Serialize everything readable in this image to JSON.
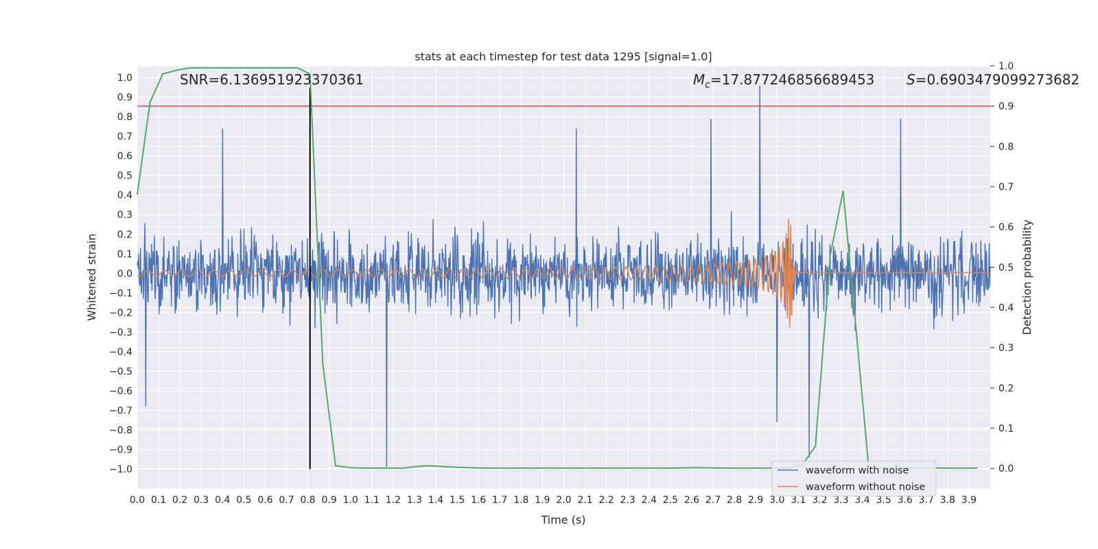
{
  "chart_data": {
    "type": "line",
    "title": "stats at each timestep for test data 1295 [signal=1.0]",
    "xlabel": "Time (s)",
    "ylabel": "Whitened strain",
    "y2label": "Detection probability",
    "xlim": [
      0.0,
      4.0
    ],
    "ylim": [
      -1.1,
      1.06
    ],
    "y2lim": [
      -0.05,
      1.0
    ],
    "x_ticks": [
      "0.0",
      "0.1",
      "0.2",
      "0.3",
      "0.4",
      "0.5",
      "0.6",
      "0.7",
      "0.8",
      "0.9",
      "1.0",
      "1.1",
      "1.2",
      "1.3",
      "1.4",
      "1.5",
      "1.6",
      "1.7",
      "1.8",
      "1.9",
      "2.0",
      "2.1",
      "2.2",
      "2.3",
      "2.4",
      "2.5",
      "2.6",
      "2.7",
      "2.8",
      "2.9",
      "3.0",
      "3.1",
      "3.2",
      "3.3",
      "3.4",
      "3.5",
      "3.6",
      "3.7",
      "3.8",
      "3.9"
    ],
    "y_ticks": [
      "1.0",
      "0.9",
      "0.8",
      "0.7",
      "0.6",
      "0.5",
      "0.4",
      "0.3",
      "0.2",
      "0.1",
      "0.0",
      "−0.1",
      "−0.2",
      "−0.3",
      "−0.4",
      "−0.5",
      "−0.6",
      "−0.7",
      "−0.8",
      "−0.9",
      "−1.0"
    ],
    "y2_ticks": [
      "1.0",
      "0.9",
      "0.8",
      "0.7",
      "0.6",
      "0.5",
      "0.4",
      "0.3",
      "0.2",
      "0.1",
      "0.0"
    ],
    "grid": true,
    "legend_position": "lower-right",
    "annotations": {
      "snr": "SNR=6.136951923370361",
      "mc_symbol": "M",
      "mc_sub": "c",
      "mc_value": "=17.877246856689453",
      "s_symbol": "S",
      "s_value": "=0.6903479099273682"
    },
    "series": [
      {
        "name": "waveform with noise",
        "color": "#4c72b0",
        "axis": "left",
        "kind": "noise",
        "amplitude_typical": 0.3,
        "peaks": [
          {
            "x": 0.4,
            "y": 0.74
          },
          {
            "x": 2.92,
            "y": 0.96
          },
          {
            "x": 2.69,
            "y": 0.79
          },
          {
            "x": 3.58,
            "y": 0.79
          },
          {
            "x": 2.06,
            "y": 0.74
          },
          {
            "x": 1.17,
            "y": -0.99
          },
          {
            "x": 3.15,
            "y": -0.94
          },
          {
            "x": 0.04,
            "y": -0.68
          },
          {
            "x": 3.0,
            "y": -0.76
          }
        ]
      },
      {
        "name": "waveform without noise",
        "color": "#dd8452",
        "axis": "left",
        "kind": "chirp",
        "merger_time": 3.07,
        "peak_amplitude": 0.28
      },
      {
        "name": "Detection probability",
        "color": "#55a868",
        "axis": "right",
        "x": [
          0.0,
          0.06,
          0.12,
          0.19,
          0.25,
          0.31,
          0.37,
          0.43,
          0.5,
          0.56,
          0.62,
          0.68,
          0.75,
          0.81,
          0.87,
          0.93,
          1.0,
          1.06,
          1.12,
          1.18,
          1.25,
          1.31,
          1.37,
          1.43,
          1.5,
          1.56,
          1.62,
          1.68,
          1.75,
          2.0,
          2.25,
          2.5,
          2.62,
          2.75,
          3.0,
          3.06,
          3.12,
          3.18,
          3.25,
          3.31,
          3.37,
          3.43,
          3.5,
          3.62,
          3.75,
          3.87,
          3.94
        ],
        "y": [
          0.68,
          0.91,
          0.98,
          0.99,
          0.995,
          0.995,
          0.995,
          0.995,
          0.995,
          0.995,
          0.995,
          0.995,
          0.995,
          0.98,
          0.26,
          0.007,
          0.002,
          0.001,
          0.001,
          0.001,
          0.001,
          0.005,
          0.007,
          0.005,
          0.003,
          0.002,
          0.001,
          0.001,
          0.001,
          0.001,
          0.001,
          0.001,
          0.002,
          0.001,
          0.001,
          0.001,
          0.01,
          0.055,
          0.53,
          0.69,
          0.35,
          0.002,
          0.001,
          0.001,
          0.001,
          0.001,
          0.001
        ]
      }
    ],
    "reference_lines": [
      {
        "orientation": "horizontal",
        "axis": "right",
        "y": 0.9,
        "color": "#c44e52"
      },
      {
        "orientation": "vertical",
        "x": 0.81,
        "y_from": -1.0,
        "y_to": 0.95,
        "color": "#000000"
      }
    ]
  }
}
